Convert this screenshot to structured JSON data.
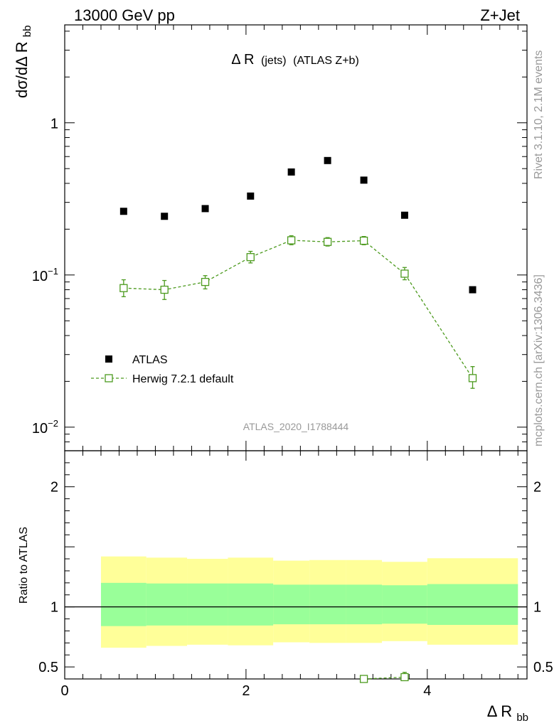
{
  "header": {
    "left": "13000 GeV pp",
    "right": "Z+Jet"
  },
  "side_labels": {
    "rivet": "Rivet 3.1.10,  2.1M events",
    "mcplots": "mcplots.cern.ch [arXiv:1306.3436]"
  },
  "chart_data": [
    {
      "type": "scatter",
      "panel": "main",
      "title_main": "Δ R",
      "title_sub": "(jets)",
      "title_tail": "(ATLAS Z+b)",
      "ylabel_main": "dσ/dΔ R",
      "ylabel_sub": "bb",
      "xlabel_main": "Δ R",
      "xlabel_sub": "bb",
      "yscale": "log",
      "xlim": [
        0,
        5.1
      ],
      "ylim": [
        0.007,
        4.4
      ],
      "ytick_labels": [
        {
          "value": 1,
          "base": "1",
          "exp": ""
        },
        {
          "value": 0.1,
          "base": "10",
          "exp": "−1"
        },
        {
          "value": 0.01,
          "base": "10",
          "exp": "−2"
        }
      ],
      "analysis_label": "ATLAS_2020_I1788444",
      "legend_position": "middle-left",
      "series": [
        {
          "name": "ATLAS",
          "marker": "filled-square",
          "color": "#000000",
          "x": [
            0.65,
            1.1,
            1.55,
            2.05,
            2.5,
            2.9,
            3.3,
            3.75,
            4.5
          ],
          "y": [
            0.262,
            0.243,
            0.273,
            0.33,
            0.475,
            0.565,
            0.42,
            0.247,
            0.08
          ]
        },
        {
          "name": "Herwig 7.2.1 default",
          "marker": "open-square",
          "line": "dashed",
          "color": "#4c9a1e",
          "x": [
            0.65,
            1.1,
            1.55,
            2.05,
            2.5,
            2.9,
            3.3,
            3.75,
            4.5
          ],
          "y": [
            0.082,
            0.08,
            0.09,
            0.131,
            0.169,
            0.165,
            0.168,
            0.102,
            0.021
          ],
          "err_up": [
            0.011,
            0.012,
            0.009,
            0.012,
            0.012,
            0.011,
            0.011,
            0.01,
            0.004
          ],
          "err_down": [
            0.01,
            0.011,
            0.009,
            0.011,
            0.011,
            0.01,
            0.01,
            0.009,
            0.003
          ]
        }
      ]
    },
    {
      "type": "band",
      "panel": "ratio",
      "ylabel": "Ratio to ATLAS",
      "ylim": [
        0.4,
        2.3
      ],
      "xlim": [
        0,
        5.1
      ],
      "xtick_labels": [
        {
          "value": 0,
          "label": "0"
        },
        {
          "value": 2,
          "label": "2"
        },
        {
          "value": 4,
          "label": "4"
        }
      ],
      "ytick_labels": [
        {
          "value": 0.5,
          "label": "0.5"
        },
        {
          "value": 1,
          "label": "1"
        },
        {
          "value": 2,
          "label": "2"
        }
      ],
      "bands": {
        "yellow_color": "#ffff99",
        "green_color": "#99ff99",
        "bins": [
          {
            "lo": 0.4,
            "hi": 0.9,
            "y_lo": 0.66,
            "y_hi": 1.42,
            "g_lo": 0.84,
            "g_hi": 1.2
          },
          {
            "lo": 0.9,
            "hi": 1.35,
            "y_lo": 0.675,
            "y_hi": 1.41,
            "g_lo": 0.845,
            "g_hi": 1.195
          },
          {
            "lo": 1.35,
            "hi": 1.8,
            "y_lo": 0.685,
            "y_hi": 1.4,
            "g_lo": 0.845,
            "g_hi": 1.195
          },
          {
            "lo": 1.8,
            "hi": 2.3,
            "y_lo": 0.68,
            "y_hi": 1.41,
            "g_lo": 0.845,
            "g_hi": 1.195
          },
          {
            "lo": 2.3,
            "hi": 2.7,
            "y_lo": 0.705,
            "y_hi": 1.385,
            "g_lo": 0.855,
            "g_hi": 1.185
          },
          {
            "lo": 2.7,
            "hi": 3.1,
            "y_lo": 0.7,
            "y_hi": 1.39,
            "g_lo": 0.855,
            "g_hi": 1.185
          },
          {
            "lo": 3.1,
            "hi": 3.5,
            "y_lo": 0.7,
            "y_hi": 1.39,
            "g_lo": 0.855,
            "g_hi": 1.185
          },
          {
            "lo": 3.5,
            "hi": 4.0,
            "y_lo": 0.715,
            "y_hi": 1.375,
            "g_lo": 0.86,
            "g_hi": 1.18
          },
          {
            "lo": 4.0,
            "hi": 5.0,
            "y_lo": 0.685,
            "y_hi": 1.405,
            "g_lo": 0.85,
            "g_hi": 1.19
          }
        ]
      },
      "herwig_ratio": {
        "color": "#4c9a1e",
        "x": [
          3.3,
          3.75
        ],
        "y": [
          0.4,
          0.415
        ],
        "err_up": [
          0.018,
          0.04
        ],
        "err_down": [
          0.0,
          0.0
        ]
      }
    }
  ]
}
